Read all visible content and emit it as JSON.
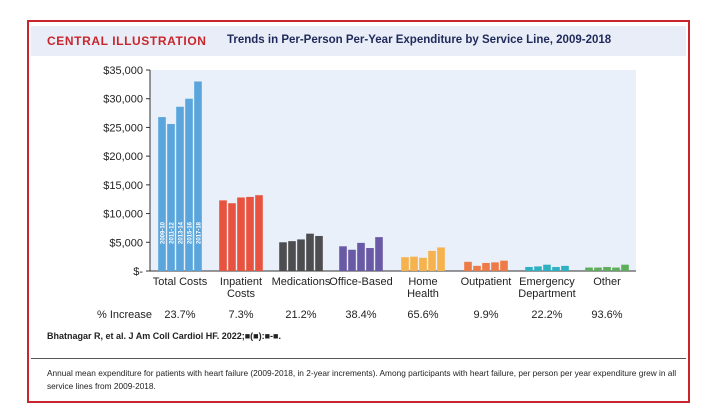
{
  "header": {
    "brand": "CENTRAL ILLUSTRATION",
    "title": "Trends in Per-Person Per-Year Expenditure by Service Line, 2009-2018"
  },
  "pct_label": "% Increase",
  "citation": "Bhatnagar R, et al. J Am Coll Cardiol HF. 2022;■(■):■-■.",
  "caption": "Annual mean expenditure for patients with heart failure (2009-2018, in 2-year increments). Among participants with heart failure, per person per year expenditure grew in all service lines from 2009-2018.",
  "chart_data": {
    "type": "bar",
    "categories": [
      "Total Costs",
      "Inpatient Costs",
      "Medications",
      "Office-Based",
      "Home Health",
      "Outpatient",
      "Emergency Department",
      "Other"
    ],
    "category_lines": [
      [
        "Total Costs"
      ],
      [
        "Inpatient",
        "Costs"
      ],
      [
        "Medications"
      ],
      [
        "Office-Based"
      ],
      [
        "Home",
        "Health"
      ],
      [
        "Outpatient"
      ],
      [
        "Emergency",
        "Department"
      ],
      [
        "Other"
      ]
    ],
    "period_labels": [
      "2009-10",
      "2011-12",
      "2013-14",
      "2015-16",
      "2017-18"
    ],
    "values": [
      [
        26800,
        25600,
        28600,
        30000,
        33000
      ],
      [
        12300,
        11800,
        12800,
        12900,
        13200
      ],
      [
        5000,
        5200,
        5500,
        6500,
        6100
      ],
      [
        4300,
        3700,
        4900,
        4000,
        5900
      ],
      [
        2400,
        2500,
        2300,
        3500,
        4100
      ],
      [
        1600,
        900,
        1400,
        1500,
        1800
      ],
      [
        700,
        800,
        1100,
        700,
        900
      ],
      [
        600,
        600,
        700,
        600,
        1100
      ]
    ],
    "percent_increase": [
      "23.7%",
      "7.3%",
      "21.2%",
      "38.4%",
      "65.6%",
      "9.9%",
      "22.2%",
      "93.6%"
    ],
    "colors": [
      "#5aa5dc",
      "#e8533f",
      "#4d4d4f",
      "#6a5aa6",
      "#f6b24d",
      "#ee7a47",
      "#2fb1c4",
      "#5eae5e"
    ],
    "y_ticks": [
      "$-",
      "$5,000",
      "$10,000",
      "$15,000",
      "$20,000",
      "$25,000",
      "$30,000",
      "$35,000"
    ],
    "ylim": [
      0,
      35000
    ],
    "plot_background": "#eaf0f9",
    "grid": false
  }
}
